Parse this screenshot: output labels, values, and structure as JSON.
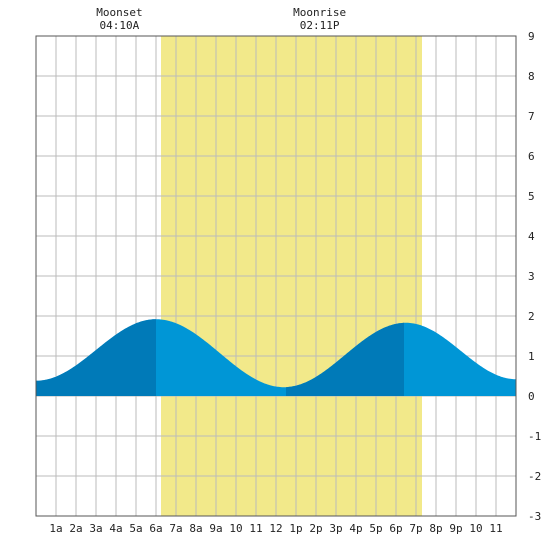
{
  "annotations": {
    "moonset": {
      "label": "Moonset",
      "time": "04:10A",
      "hour": 4.17
    },
    "moonrise": {
      "label": "Moonrise",
      "time": "02:11P",
      "hour": 14.18
    }
  },
  "chart_data": {
    "type": "area",
    "title": "",
    "xlabel": "",
    "ylabel": "",
    "xlim": [
      0,
      24
    ],
    "ylim": [
      -3,
      9
    ],
    "grid": true,
    "x_tick_labels": [
      {
        "x": 1,
        "label": "1a"
      },
      {
        "x": 2,
        "label": "2a"
      },
      {
        "x": 3,
        "label": "3a"
      },
      {
        "x": 4,
        "label": "4a"
      },
      {
        "x": 5,
        "label": "5a"
      },
      {
        "x": 6,
        "label": "6a"
      },
      {
        "x": 7,
        "label": "7a"
      },
      {
        "x": 8,
        "label": "8a"
      },
      {
        "x": 9,
        "label": "9a"
      },
      {
        "x": 10,
        "label": "10"
      },
      {
        "x": 11,
        "label": "11"
      },
      {
        "x": 12,
        "label": "12"
      },
      {
        "x": 13,
        "label": "1p"
      },
      {
        "x": 14,
        "label": "2p"
      },
      {
        "x": 15,
        "label": "3p"
      },
      {
        "x": 16,
        "label": "4p"
      },
      {
        "x": 17,
        "label": "5p"
      },
      {
        "x": 18,
        "label": "6p"
      },
      {
        "x": 19,
        "label": "7p"
      },
      {
        "x": 20,
        "label": "8p"
      },
      {
        "x": 21,
        "label": "9p"
      },
      {
        "x": 22,
        "label": "10"
      },
      {
        "x": 23,
        "label": "11"
      }
    ],
    "y_ticks": [
      -3,
      -2,
      -1,
      0,
      1,
      2,
      3,
      4,
      5,
      6,
      7,
      8,
      9
    ],
    "daylight": {
      "start": 6.25,
      "end": 19.3,
      "color": "#f2e98a"
    },
    "colors": {
      "tide_light": "#0096d6",
      "tide_dark": "#007ab8",
      "grid": "#bbbbbb"
    },
    "extremes": [
      {
        "x": 0.0,
        "y": 0.38
      },
      {
        "x": 6.0,
        "y": 1.92
      },
      {
        "x": 12.4,
        "y": 0.22
      },
      {
        "x": 18.5,
        "y": 1.83
      },
      {
        "x": 24.0,
        "y": 0.42
      }
    ],
    "dark_segments": [
      {
        "start": 0.0,
        "end": 6.0
      },
      {
        "start": 12.5,
        "end": 18.4
      }
    ]
  }
}
